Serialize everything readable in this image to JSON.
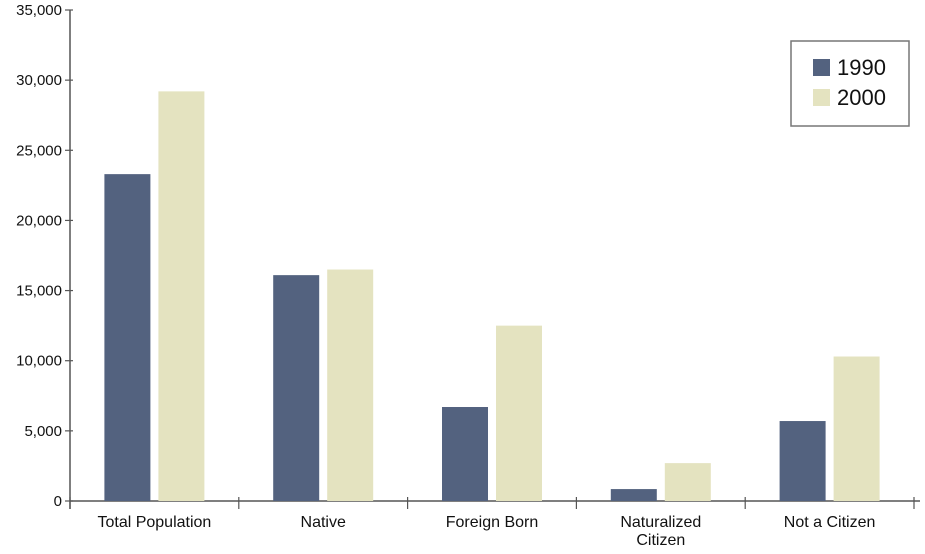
{
  "chart_data": {
    "type": "bar",
    "categories": [
      "Total Population",
      "Native",
      "Foreign Born",
      "Naturalized Citizen",
      "Not a Citizen"
    ],
    "series": [
      {
        "name": "1990",
        "values": [
          23300,
          16100,
          6700,
          850,
          5700
        ],
        "color": "#53627f"
      },
      {
        "name": "2000",
        "values": [
          29200,
          16500,
          12500,
          2700,
          10300
        ],
        "color": "#e4e3c0"
      }
    ],
    "yticks": [
      "0",
      "5,000",
      "10,000",
      "15,000",
      "20,000",
      "25,000",
      "30,000",
      "35,000"
    ],
    "ylim": [
      0,
      35000
    ],
    "grid": false,
    "legend_position": "top-right"
  }
}
